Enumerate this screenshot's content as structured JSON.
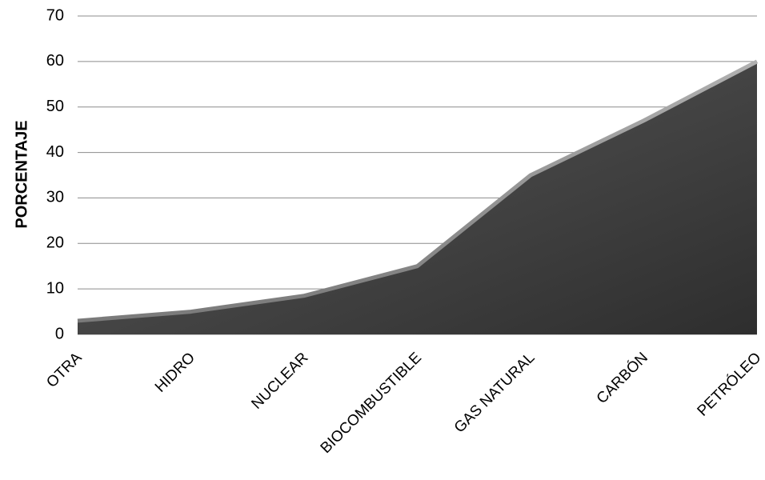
{
  "chart_data": {
    "type": "area",
    "categories": [
      "OTRA",
      "HIDRO",
      "NUCLEAR",
      "BIOCOMBUSTIBLE",
      "GAS NATURAL",
      "CARBÓN",
      "PETRÓLEO"
    ],
    "series": [
      {
        "values": [
          3,
          5,
          8.5,
          15,
          35,
          47,
          60
        ]
      }
    ],
    "ylabel": "PORCENTAJE",
    "xlabel": "",
    "title": "",
    "ylim": [
      0,
      70
    ],
    "yticks": [
      0,
      10,
      20,
      30,
      40,
      50,
      60,
      70
    ],
    "grid": true,
    "legend": "none",
    "colors": {
      "area_fill_dark": "#3a3a3a",
      "area_fill_light": "#6e6e6e",
      "area_edge": "#9a9a9a",
      "grid": "#8c8c8c"
    }
  }
}
